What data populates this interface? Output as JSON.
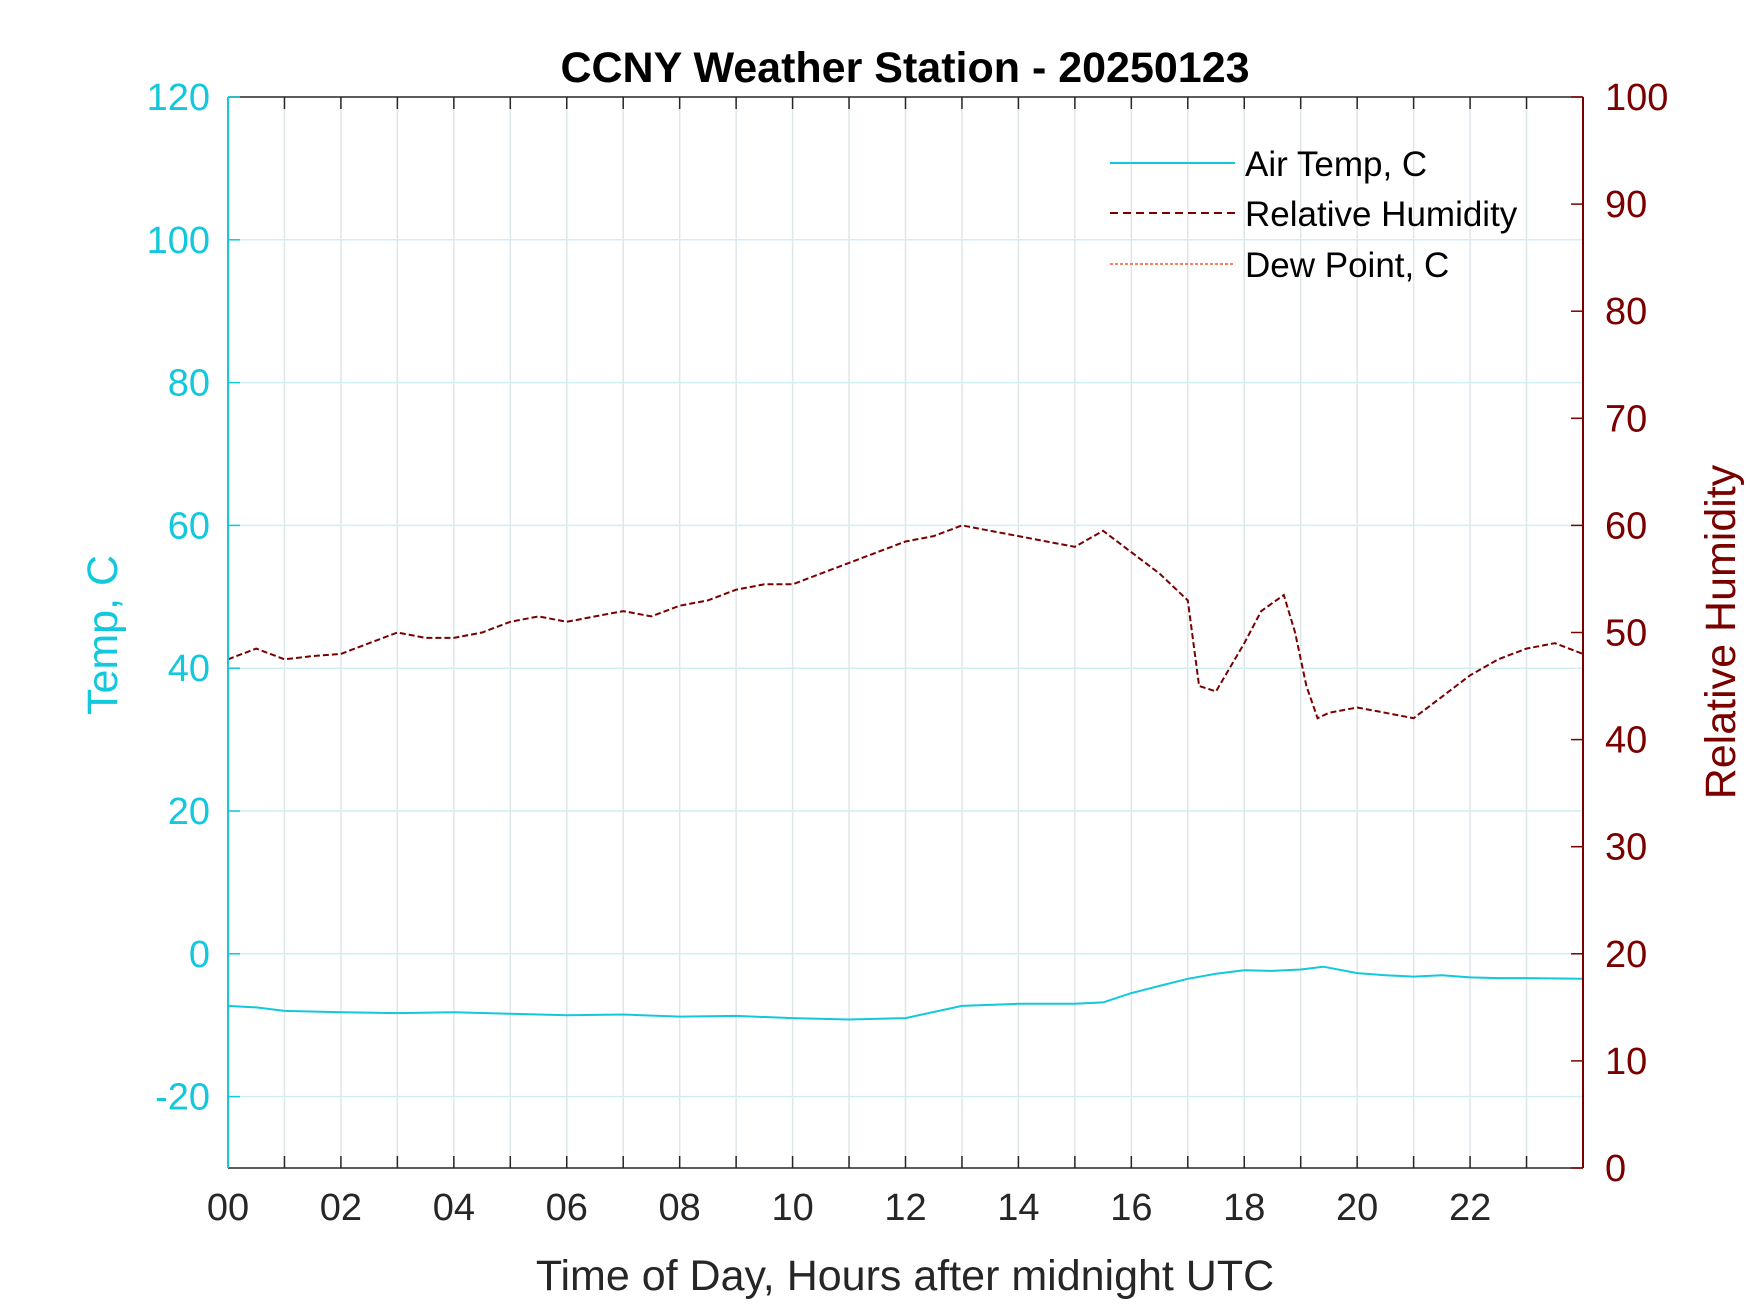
{
  "chart_data": {
    "type": "line",
    "title": "CCNY Weather Station - 20250123",
    "xlabel": "Time of Day, Hours after midnight UTC",
    "ylabel_left": "Temp, C",
    "ylabel_right": "Relative Humidity",
    "xlim": [
      0,
      24
    ],
    "ylim_left": [
      -30,
      120
    ],
    "ylim_right": [
      0,
      100
    ],
    "x_ticks": [
      0,
      2,
      4,
      6,
      8,
      10,
      12,
      14,
      16,
      18,
      20,
      22
    ],
    "x_tick_labels": [
      "00",
      "02",
      "04",
      "06",
      "08",
      "10",
      "12",
      "14",
      "16",
      "18",
      "20",
      "22"
    ],
    "y_left_ticks": [
      -20,
      0,
      20,
      40,
      60,
      80,
      100,
      120
    ],
    "y_left_tick_labels": [
      "-20",
      "0",
      "20",
      "40",
      "60",
      "80",
      "100",
      "120"
    ],
    "y_right_ticks": [
      0,
      10,
      20,
      30,
      40,
      50,
      60,
      70,
      80,
      90,
      100
    ],
    "y_right_tick_labels": [
      "0",
      "10",
      "20",
      "30",
      "40",
      "50",
      "60",
      "70",
      "80",
      "90",
      "100"
    ],
    "grid": true,
    "legend_position": "top-right",
    "colors": {
      "temp": "#12c8dc",
      "humidity": "#7a0000",
      "dewpoint": "#f05a3c",
      "grid": "#dfe6ea",
      "hgrid": "#cfeff5"
    },
    "series": [
      {
        "name": "Air Temp, C",
        "axis": "left",
        "style": "solid",
        "x": [
          0,
          0.5,
          1,
          2,
          3,
          4,
          5,
          6,
          7,
          8,
          9,
          10,
          11,
          12,
          13,
          14,
          15,
          15.5,
          16,
          16.5,
          17,
          17.5,
          18,
          18.5,
          19,
          19.4,
          20,
          20.5,
          21,
          21.5,
          22,
          22.5,
          23,
          24
        ],
        "y": [
          -7.3,
          -7.5,
          -8,
          -8.2,
          -8.3,
          -8.2,
          -8.4,
          -8.6,
          -8.5,
          -8.8,
          -8.7,
          -9,
          -9.2,
          -9,
          -7.3,
          -7,
          -7,
          -6.8,
          -5.5,
          -4.5,
          -3.5,
          -2.8,
          -2.3,
          -2.4,
          -2.2,
          -1.8,
          -2.7,
          -3,
          -3.2,
          -3,
          -3.3,
          -3.4,
          -3.4,
          -3.5
        ]
      },
      {
        "name": "Relative Humidity",
        "axis": "right",
        "style": "dashed",
        "x": [
          0,
          0.5,
          1,
          1.5,
          2,
          2.5,
          3,
          3.5,
          4,
          4.5,
          5,
          5.5,
          6,
          6.5,
          7,
          7.5,
          8,
          8.5,
          9,
          9.5,
          10,
          10.5,
          11,
          11.5,
          12,
          12.5,
          13,
          13.5,
          14,
          14.5,
          15,
          15.5,
          16,
          16.5,
          16.8,
          17,
          17.2,
          17.5,
          18,
          18.3,
          18.7,
          18.9,
          19.1,
          19.3,
          19.5,
          20,
          20.5,
          21,
          21.5,
          22,
          22.5,
          23,
          23.5,
          24
        ],
        "y": [
          47.5,
          48.5,
          47.5,
          47.8,
          48,
          49,
          50,
          49.5,
          49.5,
          50,
          51,
          51.5,
          51,
          51.5,
          52,
          51.5,
          52.5,
          53,
          54,
          54.5,
          54.5,
          55.5,
          56.5,
          57.5,
          58.5,
          59,
          60,
          59.5,
          59,
          58.5,
          58,
          59.5,
          57.5,
          55.5,
          54,
          53,
          45,
          44.5,
          49,
          52,
          53.5,
          50,
          45,
          42,
          42.5,
          43,
          42.5,
          42,
          44,
          46,
          47.5,
          48.5,
          49,
          48
        ]
      },
      {
        "name": "Dew Point, C",
        "axis": "left",
        "style": "dotted",
        "x": [],
        "y": []
      }
    ]
  }
}
